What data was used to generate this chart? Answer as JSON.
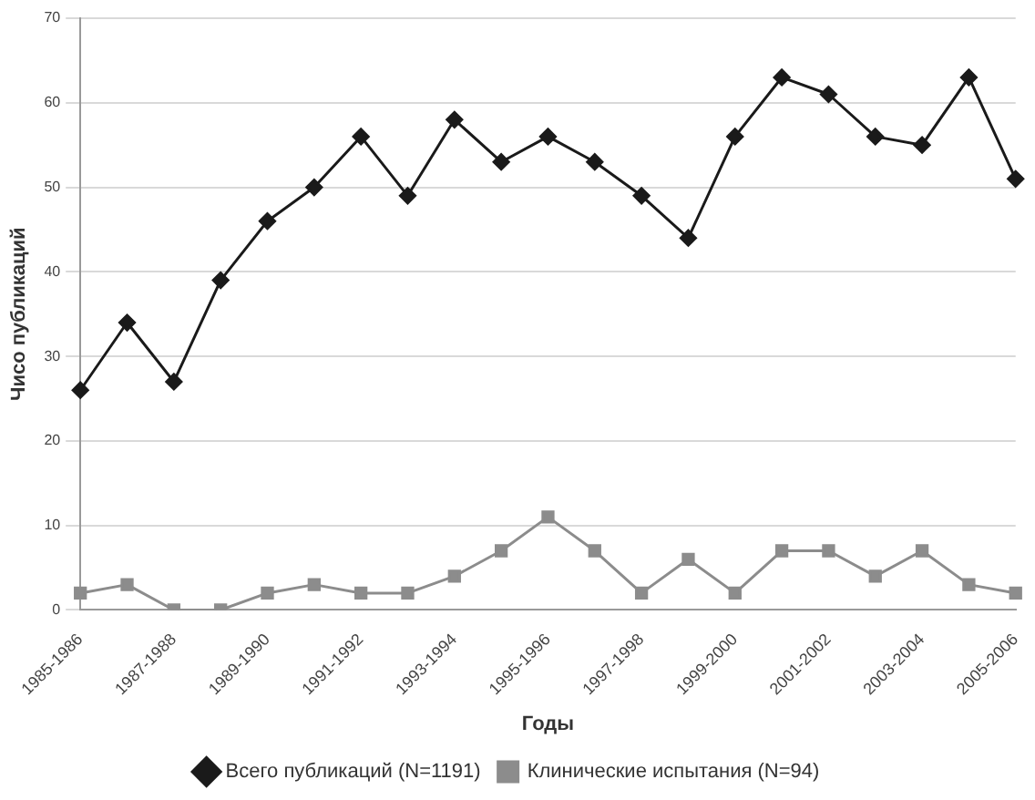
{
  "chart_data": {
    "type": "line",
    "xlabel": "Годы",
    "ylabel": "Чисо публикаций",
    "categories": [
      "1985-1986",
      null,
      "1987-1988",
      null,
      "1989-1990",
      null,
      "1991-1992",
      null,
      "1993-1994",
      null,
      "1995-1996",
      null,
      "1997-1998",
      null,
      "1999-2000",
      null,
      "2001-2002",
      null,
      "2003-2004",
      null,
      "2005-2006"
    ],
    "series": [
      {
        "name": "Всего публикаций (N=1191)",
        "color": "#1a1a1a",
        "marker": "diamond",
        "values": [
          26,
          34,
          27,
          39,
          46,
          50,
          56,
          49,
          58,
          53,
          56,
          53,
          49,
          44,
          56,
          63,
          61,
          56,
          55,
          63,
          51
        ]
      },
      {
        "name": "Клинические испытания (N=94)",
        "color": "#8c8c8c",
        "marker": "square",
        "values": [
          2,
          3,
          0,
          0,
          2,
          3,
          2,
          2,
          4,
          7,
          11,
          7,
          2,
          6,
          2,
          7,
          7,
          4,
          7,
          3,
          2
        ]
      }
    ],
    "ylim": [
      0,
      70
    ],
    "yticks": [
      0,
      10,
      20,
      30,
      40,
      50,
      60,
      70
    ],
    "grid": "y",
    "legend": "bottom",
    "line_style": "solid"
  }
}
